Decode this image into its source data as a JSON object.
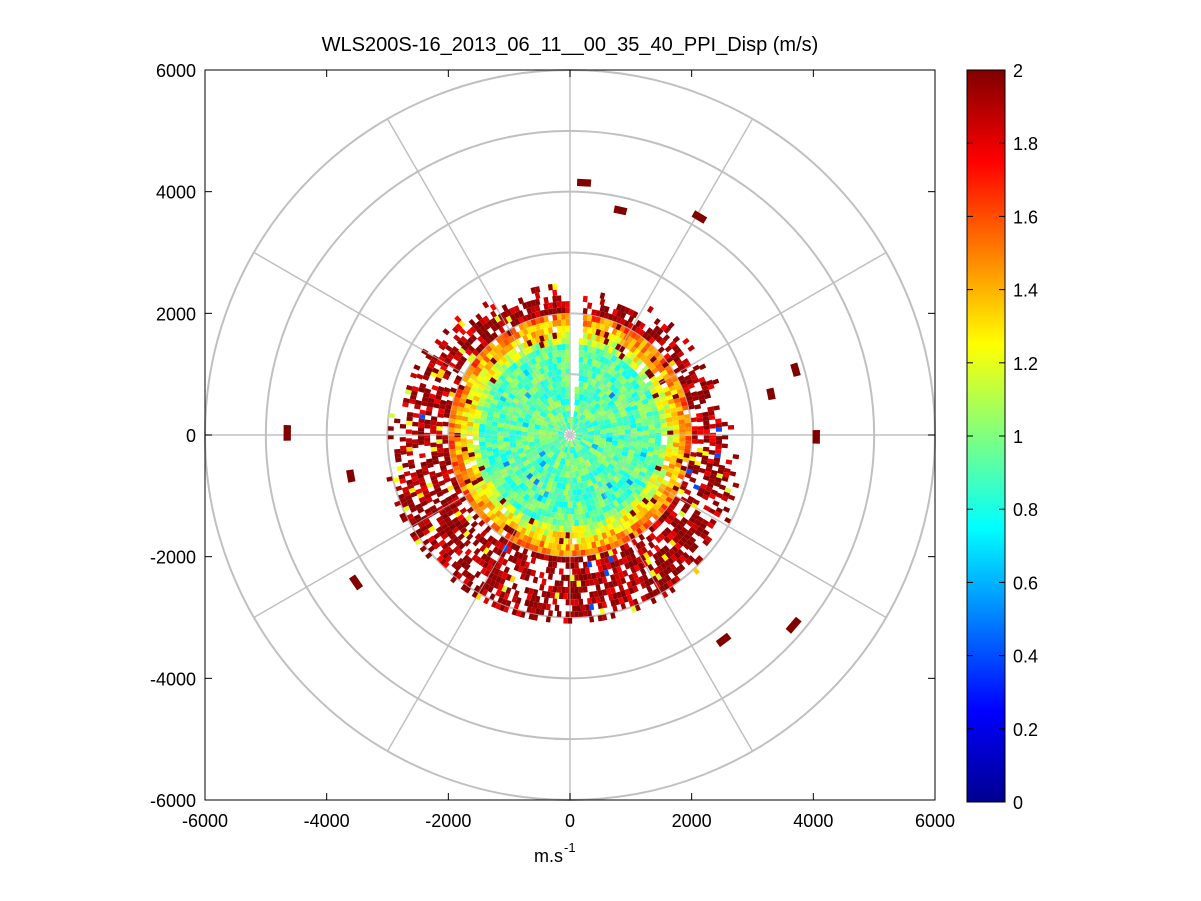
{
  "chart_data": {
    "type": "heatmap",
    "subtype": "polar PPI scan",
    "title": "WLS200S-16_2013_06_11__00_35_40_PPI_Disp (m/s)",
    "xlabel": "m.s",
    "xlabel_superscript": "-1",
    "ylabel": "",
    "xlim": [
      -6000,
      6000
    ],
    "ylim": [
      -6000,
      6000
    ],
    "x_ticks": [
      "-6000",
      "-4000",
      "-2000",
      "0",
      "2000",
      "4000",
      "6000"
    ],
    "y_ticks": [
      "6000",
      "4000",
      "2000",
      "0",
      "-2000",
      "-4000",
      "-6000"
    ],
    "polar_grid": {
      "ring_radii": [
        1000,
        2000,
        3000,
        4000,
        5000,
        6000
      ],
      "spoke_angles_deg": [
        0,
        30,
        60,
        90,
        120,
        150,
        180,
        210,
        240,
        270,
        300,
        330
      ]
    },
    "colorbar": {
      "colormap": "jet",
      "range": [
        0,
        2
      ],
      "tick_labels": [
        "2",
        "1.8",
        "1.6",
        "1.4",
        "1.2",
        "1",
        "0.8",
        "0.6",
        "0.4",
        "0.2",
        "0"
      ]
    },
    "radial_profile": [
      {
        "range_m": "0-1500",
        "typical_value": 0.9,
        "description": "cyan/green core"
      },
      {
        "range_m": "1500-2000",
        "typical_value": 1.2,
        "description": "yellow/green ring"
      },
      {
        "range_m": "2000-3100",
        "typical_value": 1.95,
        "description": "red/dark red patchy ring"
      },
      {
        "range_m": "3100-4800",
        "typical_value": 2.0,
        "description": "sparse isolated dark red cells"
      }
    ],
    "data_gap_azimuth_deg": 2,
    "outlier_cells": [
      {
        "x": 200,
        "y": 4150,
        "value": 2.0
      },
      {
        "x": 800,
        "y": 3700,
        "value": 2.0
      },
      {
        "x": 2100,
        "y": 3600,
        "value": 2.0
      },
      {
        "x": -4650,
        "y": 0,
        "value": 2.0
      },
      {
        "x": 4050,
        "y": 0,
        "value": 2.0
      },
      {
        "x": -3500,
        "y": -2450,
        "value": 2.0
      },
      {
        "x": 3700,
        "y": -3100,
        "value": 2.0
      },
      {
        "x": 2550,
        "y": -3350,
        "value": 2.0
      },
      {
        "x": -3600,
        "y": -700,
        "value": 2.0
      },
      {
        "x": 3700,
        "y": 1100,
        "value": 2.0
      },
      {
        "x": 3300,
        "y": 700,
        "value": 2.0
      }
    ]
  }
}
